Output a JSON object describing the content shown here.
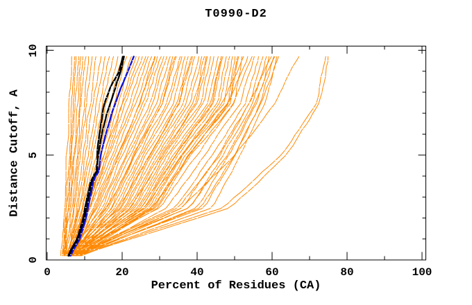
{
  "chart_data": {
    "type": "line",
    "title": "T0990-D2",
    "xlabel": "Percent of Residues (CA)",
    "ylabel": "Distance Cutoff, A",
    "xlim": [
      0,
      100
    ],
    "ylim": [
      0,
      10
    ],
    "grid": "white dotted horizontal rows every 0.25 over curve mass",
    "legend_position": "none",
    "x_major_ticks": [
      0,
      20,
      40,
      60,
      80,
      100
    ],
    "x_major_tick_labels": [
      "0",
      "20",
      "40",
      "60",
      "80",
      "100"
    ],
    "x_minor_ticks": [
      10,
      30,
      50,
      70,
      90
    ],
    "y_major_ticks": [
      0,
      5,
      10
    ],
    "y_major_tick_labels": [
      "0",
      "5",
      "10"
    ],
    "y_minor_ticks": [
      1,
      2,
      3,
      4,
      6,
      7,
      8,
      9
    ],
    "colors": {
      "predictions_orange": "#ff8800",
      "highlight_black": "#000000",
      "highlight_blue": "#1111d6",
      "axis": "#000000",
      "background": "#ffffff",
      "grid_dots": "#ffffff"
    },
    "sample_ys": [
      0.25,
      2.5,
      5.0,
      7.5,
      9.75
    ],
    "orange_curves": [
      [
        3.8,
        4.6,
        5.2,
        5.9,
        6.6
      ],
      [
        4.0,
        5.0,
        5.8,
        6.5,
        7.2
      ],
      [
        4.2,
        5.3,
        6.2,
        7.0,
        7.8
      ],
      [
        4.4,
        5.6,
        6.6,
        7.6,
        8.4
      ],
      [
        4.3,
        5.8,
        7.0,
        8.1,
        9.0
      ],
      [
        4.6,
        6.1,
        7.4,
        8.6,
        9.6
      ],
      [
        4.8,
        6.5,
        7.9,
        9.2,
        10.3
      ],
      [
        5.0,
        6.9,
        8.4,
        9.9,
        11.0
      ],
      [
        5.2,
        7.3,
        9.0,
        10.6,
        11.9
      ],
      [
        5.4,
        7.8,
        9.6,
        11.5,
        13.2
      ],
      [
        5.6,
        8.2,
        10.2,
        12.3,
        14.3
      ],
      [
        5.8,
        8.6,
        10.9,
        13.2,
        15.4
      ],
      [
        5.5,
        9.0,
        11.6,
        14.1,
        16.5
      ],
      [
        6.0,
        9.4,
        12.3,
        15.0,
        17.6
      ],
      [
        6.2,
        9.8,
        13.0,
        16.0,
        18.8
      ],
      [
        5.9,
        10.2,
        13.7,
        17.0,
        20.0
      ],
      [
        6.4,
        10.6,
        14.4,
        18.0,
        21.2
      ],
      [
        6.6,
        11.0,
        15.1,
        19.0,
        22.4
      ],
      [
        6.1,
        11.4,
        15.8,
        20.0,
        23.6
      ],
      [
        6.8,
        9.8,
        15.2,
        20.1,
        24.6
      ],
      [
        4.9,
        10.4,
        16.0,
        21.0,
        25.4
      ],
      [
        7.1,
        11.0,
        16.6,
        22.0,
        26.2
      ],
      [
        5.3,
        11.6,
        17.3,
        22.9,
        27.0
      ],
      [
        6.5,
        12.2,
        18.0,
        23.8,
        27.9
      ],
      [
        7.4,
        12.8,
        18.7,
        24.7,
        28.7
      ],
      [
        6.9,
        13.1,
        19.0,
        24.9,
        29.0
      ],
      [
        5.0,
        13.4,
        19.4,
        25.6,
        29.5
      ],
      [
        6.9,
        14.0,
        20.1,
        26.5,
        30.4
      ],
      [
        5.6,
        14.6,
        20.8,
        27.4,
        31.2
      ],
      [
        7.7,
        15.2,
        21.5,
        28.3,
        32.0
      ],
      [
        5.2,
        15.8,
        22.2,
        29.2,
        32.9
      ],
      [
        6.3,
        16.4,
        22.9,
        30.1,
        33.7
      ],
      [
        7.3,
        16.1,
        23.3,
        30.6,
        34.1
      ],
      [
        7.9,
        17.0,
        23.6,
        31.0,
        34.5
      ],
      [
        5.8,
        17.6,
        24.3,
        31.9,
        35.4
      ],
      [
        6.6,
        18.2,
        25.0,
        32.8,
        36.2
      ],
      [
        8.1,
        18.8,
        25.7,
        33.7,
        37.0
      ],
      [
        5.4,
        19.4,
        26.4,
        34.6,
        37.9
      ],
      [
        6.0,
        19.1,
        27.5,
        35.1,
        38.3
      ],
      [
        7.2,
        20.0,
        27.1,
        35.5,
        38.7
      ],
      [
        6.0,
        20.6,
        27.8,
        36.4,
        39.5
      ],
      [
        8.3,
        21.2,
        28.5,
        37.3,
        40.4
      ],
      [
        5.7,
        21.8,
        29.2,
        38.2,
        41.2
      ],
      [
        7.5,
        22.4,
        29.9,
        39.1,
        42.0
      ],
      [
        7.1,
        22.1,
        31.0,
        39.6,
        42.5
      ],
      [
        6.2,
        23.0,
        30.6,
        40.0,
        42.9
      ],
      [
        8.5,
        23.6,
        31.3,
        40.9,
        43.7
      ],
      [
        5.9,
        24.2,
        32.0,
        41.8,
        44.5
      ],
      [
        7.0,
        24.8,
        32.7,
        42.7,
        45.4
      ],
      [
        6.4,
        25.4,
        33.4,
        43.6,
        46.2
      ],
      [
        6.6,
        25.1,
        34.4,
        44.1,
        46.6
      ],
      [
        8.7,
        26.0,
        34.1,
        44.5,
        47.0
      ],
      [
        6.1,
        26.6,
        34.8,
        45.4,
        47.9
      ],
      [
        7.6,
        27.2,
        35.5,
        46.3,
        48.7
      ],
      [
        6.7,
        27.8,
        36.2,
        47.2,
        49.5
      ],
      [
        8.0,
        28.1,
        37.9,
        48.6,
        50.8
      ],
      [
        8.9,
        28.4,
        36.9,
        48.1,
        50.4
      ],
      [
        6.3,
        29.0,
        37.6,
        49.0,
        51.2
      ],
      [
        7.8,
        29.6,
        38.3,
        49.9,
        52.0
      ],
      [
        7.0,
        26.0,
        36.0,
        46.5,
        52.8
      ],
      [
        8.2,
        28.0,
        38.0,
        48.5,
        53.6
      ],
      [
        6.5,
        30.0,
        40.0,
        50.0,
        54.5
      ],
      [
        9.0,
        32.0,
        42.0,
        51.5,
        55.5
      ],
      [
        7.3,
        34.0,
        44.0,
        53.0,
        56.5
      ],
      [
        8.6,
        36.0,
        45.5,
        54.0,
        57.5
      ],
      [
        6.8,
        38.0,
        47.0,
        55.0,
        58.5
      ],
      [
        9.2,
        40.0,
        48.5,
        56.0,
        59.5
      ],
      [
        7.7,
        42.0,
        50.0,
        57.0,
        60.5
      ],
      [
        8.8,
        44.0,
        51.5,
        58.0,
        61.5
      ],
      [
        7.5,
        35.0,
        46.0,
        54.0,
        59.8
      ],
      [
        9.0,
        38.0,
        48.0,
        55.5,
        60.8
      ],
      [
        8.4,
        41.0,
        50.0,
        57.0,
        61.8
      ],
      [
        8.0,
        36.0,
        50.0,
        61.0,
        67.2
      ],
      [
        8.5,
        47.0,
        62.5,
        71.8,
        74.3
      ],
      [
        9.2,
        49.0,
        64.0,
        72.8,
        75.1
      ]
    ],
    "black_curves": [
      [
        [
          0.25,
          5.6
        ],
        [
          1,
          8.0
        ],
        [
          2,
          9.6
        ],
        [
          3,
          10.7
        ],
        [
          3.9,
          11.9
        ],
        [
          4.1,
          13.0
        ],
        [
          5,
          13.6
        ],
        [
          6,
          14.6
        ],
        [
          7,
          16.0
        ],
        [
          8,
          17.8
        ],
        [
          9,
          19.6
        ],
        [
          9.75,
          20.6
        ]
      ],
      [
        [
          0.25,
          5.9
        ],
        [
          1,
          8.4
        ],
        [
          2,
          10.0
        ],
        [
          3,
          11.1
        ],
        [
          3.9,
          12.3
        ],
        [
          4.1,
          13.3
        ],
        [
          5,
          13.3
        ],
        [
          6,
          13.9
        ],
        [
          6.8,
          14.6
        ],
        [
          7.5,
          15.3
        ],
        [
          8.3,
          17.0
        ],
        [
          9,
          19.2
        ],
        [
          9.75,
          20.2
        ]
      ]
    ],
    "blue_curves": [
      [
        [
          0.25,
          6.3
        ],
        [
          1,
          8.8
        ],
        [
          2,
          10.4
        ],
        [
          3,
          11.5
        ],
        [
          3.9,
          12.6
        ],
        [
          4.1,
          13.7
        ],
        [
          5,
          14.3
        ],
        [
          6,
          15.6
        ],
        [
          7,
          17.2
        ],
        [
          8,
          19.2
        ],
        [
          9,
          21.5
        ],
        [
          9.75,
          23.2
        ]
      ]
    ]
  }
}
